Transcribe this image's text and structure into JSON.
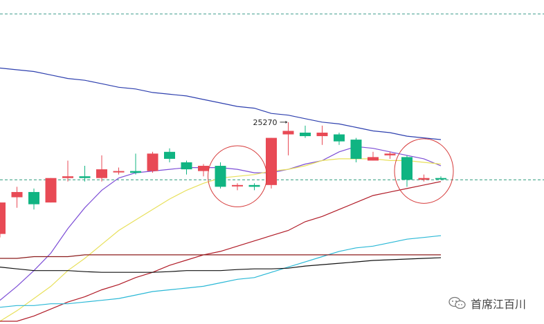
{
  "chart_data": {
    "type": "candlestick",
    "title": "",
    "xlabel": "",
    "ylabel": "",
    "ylim": [
      24700,
      25600
    ],
    "grid": false,
    "reference_lines": [
      {
        "y": 25580,
        "color": "#3a9a8a",
        "style": "dashed"
      },
      {
        "y": 25105,
        "color": "#2a9a7a",
        "style": "dashed"
      }
    ],
    "candles": [
      {
        "o": 24950,
        "h": 25040,
        "l": 24940,
        "c": 25040,
        "dir": "up"
      },
      {
        "o": 25070,
        "h": 25085,
        "l": 25025,
        "c": 25055,
        "dir": "up"
      },
      {
        "o": 25070,
        "h": 25080,
        "l": 25020,
        "c": 25035,
        "dir": "down"
      },
      {
        "o": 25040,
        "h": 25110,
        "l": 25040,
        "c": 25110,
        "dir": "up"
      },
      {
        "o": 25115,
        "h": 25160,
        "l": 25100,
        "c": 25110,
        "dir": "up"
      },
      {
        "o": 25115,
        "h": 25145,
        "l": 25100,
        "c": 25110,
        "dir": "down"
      },
      {
        "o": 25110,
        "h": 25175,
        "l": 25100,
        "c": 25135,
        "dir": "up"
      },
      {
        "o": 25130,
        "h": 25140,
        "l": 25120,
        "c": 25130,
        "dir": "up"
      },
      {
        "o": 25130,
        "h": 25180,
        "l": 25120,
        "c": 25125,
        "dir": "down"
      },
      {
        "o": 25130,
        "h": 25185,
        "l": 25125,
        "c": 25180,
        "dir": "up"
      },
      {
        "o": 25165,
        "h": 25195,
        "l": 25155,
        "c": 25185,
        "dir": "down"
      },
      {
        "o": 25135,
        "h": 25160,
        "l": 25120,
        "c": 25155,
        "dir": "down"
      },
      {
        "o": 25145,
        "h": 25150,
        "l": 25115,
        "c": 25130,
        "dir": "up"
      },
      {
        "o": 25145,
        "h": 25155,
        "l": 25080,
        "c": 25085,
        "dir": "down"
      },
      {
        "o": 25090,
        "h": 25095,
        "l": 25075,
        "c": 25090,
        "dir": "up"
      },
      {
        "o": 25085,
        "h": 25095,
        "l": 25075,
        "c": 25090,
        "dir": "down"
      },
      {
        "o": 25090,
        "h": 25225,
        "l": 25080,
        "c": 25225,
        "dir": "up"
      },
      {
        "o": 25245,
        "h": 25270,
        "l": 25175,
        "c": 25235,
        "dir": "up"
      },
      {
        "o": 25240,
        "h": 25260,
        "l": 25225,
        "c": 25230,
        "dir": "down"
      },
      {
        "o": 25240,
        "h": 25260,
        "l": 25205,
        "c": 25230,
        "dir": "up"
      },
      {
        "o": 25235,
        "h": 25240,
        "l": 25205,
        "c": 25215,
        "dir": "down"
      },
      {
        "o": 25220,
        "h": 25225,
        "l": 25155,
        "c": 25165,
        "dir": "down"
      },
      {
        "o": 25160,
        "h": 25185,
        "l": 25160,
        "c": 25170,
        "dir": "up"
      },
      {
        "o": 25175,
        "h": 25185,
        "l": 25165,
        "c": 25180,
        "dir": "up"
      },
      {
        "o": 25170,
        "h": 25175,
        "l": 25085,
        "c": 25105,
        "dir": "down"
      },
      {
        "o": 25110,
        "h": 25120,
        "l": 25100,
        "c": 25105,
        "dir": "up"
      },
      {
        "o": 25110,
        "h": 25115,
        "l": 25105,
        "c": 25108,
        "dir": "down"
      }
    ],
    "moving_averages": [
      {
        "color": "#7c4dd6",
        "values": [
          24760,
          24800,
          24845,
          24895,
          24965,
          25025,
          25075,
          25110,
          25125,
          25130,
          25135,
          25140,
          25140,
          25140,
          25135,
          25125,
          25125,
          25135,
          25150,
          25160,
          25185,
          25200,
          25195,
          25185,
          25175,
          25165,
          25145
        ]
      },
      {
        "color": "#e8e05a",
        "values": [
          24700,
          24730,
          24765,
          24800,
          24845,
          24880,
          24920,
          24960,
          24990,
          25020,
          25050,
          25075,
          25095,
          25110,
          25115,
          25120,
          25130,
          25135,
          25145,
          25160,
          25165,
          25165,
          25165,
          25160,
          25160,
          25155,
          25150
        ]
      },
      {
        "color": "#b01a26",
        "values": [
          24700,
          24700,
          24715,
          24735,
          24755,
          24770,
          24790,
          24805,
          24825,
          24840,
          24860,
          24875,
          24890,
          24900,
          24915,
          24930,
          24945,
          24960,
          24985,
          25000,
          25020,
          25040,
          25060,
          25070,
          25080,
          25090,
          25100
        ]
      },
      {
        "color": "#2d3fae",
        "values": [
          25425,
          25420,
          25415,
          25405,
          25395,
          25390,
          25380,
          25370,
          25365,
          25355,
          25350,
          25345,
          25335,
          25325,
          25315,
          25310,
          25295,
          25290,
          25280,
          25270,
          25265,
          25255,
          25245,
          25240,
          25230,
          25225,
          25220
        ]
      },
      {
        "color": "#2ab8d6",
        "values": [
          24740,
          24745,
          24745,
          24750,
          24750,
          24755,
          24760,
          24765,
          24775,
          24785,
          24790,
          24795,
          24800,
          24810,
          24820,
          24825,
          24840,
          24855,
          24870,
          24885,
          24900,
          24910,
          24915,
          24925,
          24935,
          24940,
          24945
        ]
      },
      {
        "color": "#8b1a1a",
        "values": [
          24880,
          24880,
          24885,
          24885,
          24885,
          24890,
          24890,
          24890,
          24890,
          24890,
          24890,
          24890,
          24890,
          24890,
          24890,
          24890,
          24890,
          24890,
          24890,
          24890,
          24890,
          24890,
          24890,
          24890,
          24890,
          24890,
          24890
        ]
      },
      {
        "color": "#111111",
        "values": [
          24855,
          24850,
          24845,
          24845,
          24845,
          24842,
          24840,
          24840,
          24840,
          24840,
          24842,
          24845,
          24845,
          24845,
          24848,
          24850,
          24850,
          24852,
          24858,
          24862,
          24866,
          24870,
          24874,
          24876,
          24878,
          24880,
          24882
        ]
      }
    ],
    "annotations": [
      {
        "text": "25270",
        "candle_index": 17,
        "y": 25270
      }
    ],
    "highlight_circles": [
      {
        "candle_from": 13,
        "candle_to": 15
      },
      {
        "candle_from": 24,
        "candle_to": 26
      }
    ],
    "colors": {
      "up": "#e84a55",
      "down": "#10b482"
    }
  },
  "watermark": {
    "text": "首席江百川",
    "icon": "wechat-official-account-icon"
  }
}
